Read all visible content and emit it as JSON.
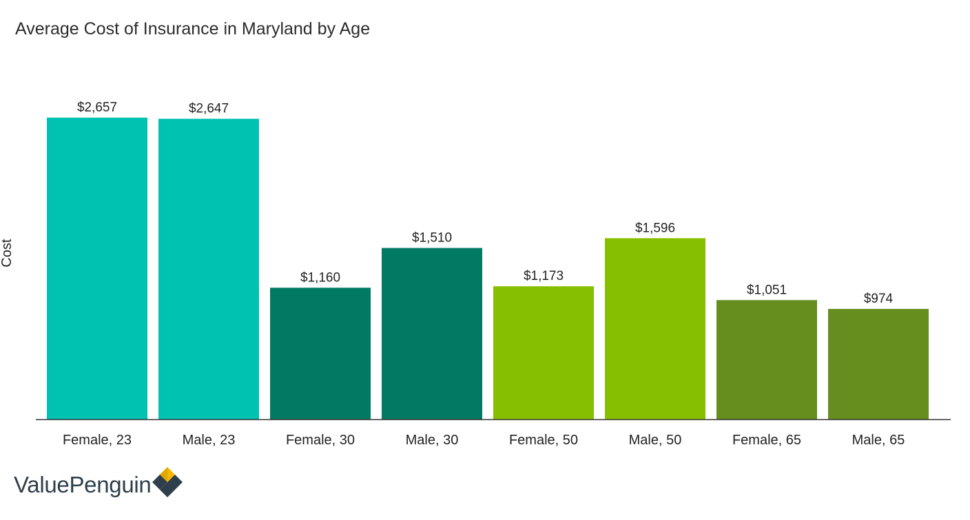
{
  "brand": {
    "name": "ValuePenguin",
    "colors": {
      "text": "#2e3f4b",
      "accent_yellow": "#f5b700",
      "dark": "#2e3f4b"
    }
  },
  "chart_data": {
    "type": "bar",
    "title": "Average Cost of Insurance in Maryland by Age",
    "xlabel": "",
    "ylabel": "Cost",
    "categories": [
      "Female, 23",
      "Male, 23",
      "Female, 30",
      "Male, 30",
      "Female, 50",
      "Male, 50",
      "Female, 65",
      "Male, 65"
    ],
    "values": [
      2657,
      2647,
      1160,
      1510,
      1173,
      1596,
      1051,
      974
    ],
    "value_labels": [
      "$2,657",
      "$2,647",
      "$1,160",
      "$1,510",
      "$1,173",
      "$1,596",
      "$1,051",
      "$974"
    ],
    "bar_colors": [
      "#00c2b0",
      "#00c2b0",
      "#007a63",
      "#007a63",
      "#85c000",
      "#85c000",
      "#668e1f",
      "#668e1f"
    ],
    "ylim": [
      0,
      2657
    ],
    "grid": false,
    "legend": "none"
  }
}
